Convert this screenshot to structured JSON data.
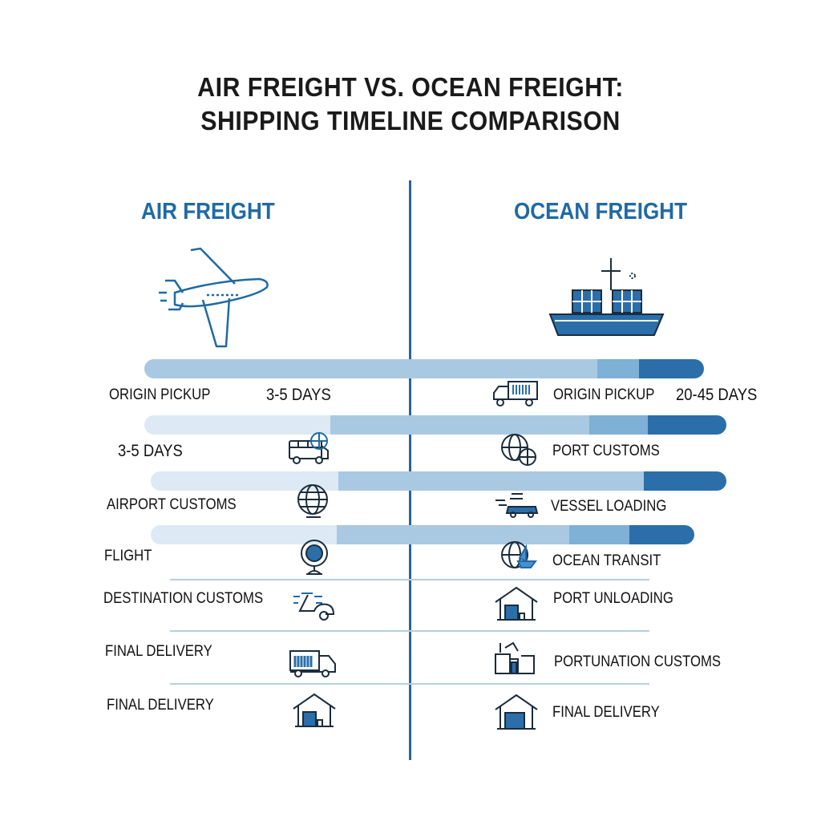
{
  "title": {
    "line1": "AIR FREIGHT VS. OCEAN FREIGHT:",
    "line2": "SHIPPING TIMELINE COMPARISON"
  },
  "colors": {
    "accent": "#1f6aa5",
    "divider": "#2a6496",
    "bar_dark": "#2b6ea9",
    "bar_light": "#dde9f4"
  },
  "air": {
    "heading": "AIR FREIGHT",
    "icon": "airplane-icon",
    "duration": "3-5 DAYS",
    "duration_repeat": "3-5 DAYS",
    "steps": [
      {
        "label": "ORIGIN PICKUP",
        "icon": ""
      },
      {
        "label": "",
        "icon": "bus-globe-icon"
      },
      {
        "label": "AIRPORT CUSTOMS",
        "icon": "globe-icon"
      },
      {
        "label": "FLIGHT",
        "icon": "globe-stand-icon"
      },
      {
        "label": "DESTINATION CUSTOMS",
        "icon": "car-icon"
      },
      {
        "label": "FINAL DELIVERY",
        "icon": "truck-icon"
      },
      {
        "label": "FINAL DELIVERY",
        "icon": "warehouse-icon"
      }
    ]
  },
  "ocean": {
    "heading": "OCEAN FREIGHT",
    "icon": "cargo-ship-icon",
    "duration": "20-45 DAYS",
    "steps": [
      {
        "label": "ORIGIN PICKUP",
        "icon": "truck-icon"
      },
      {
        "label": "PORT CUSTOMS",
        "icon": "globe-icon"
      },
      {
        "label": "VESSEL LOADING",
        "icon": "vessel-icon"
      },
      {
        "label": "OCEAN TRANSIT",
        "icon": "globe-ship-icon"
      },
      {
        "label": "PORT UNLOADING",
        "icon": "warehouse-icon"
      },
      {
        "label": "PORTUNATION CUSTOMS",
        "icon": "factory-icon"
      },
      {
        "label": "FINAL DELIVERY",
        "icon": "warehouse-icon"
      }
    ]
  }
}
